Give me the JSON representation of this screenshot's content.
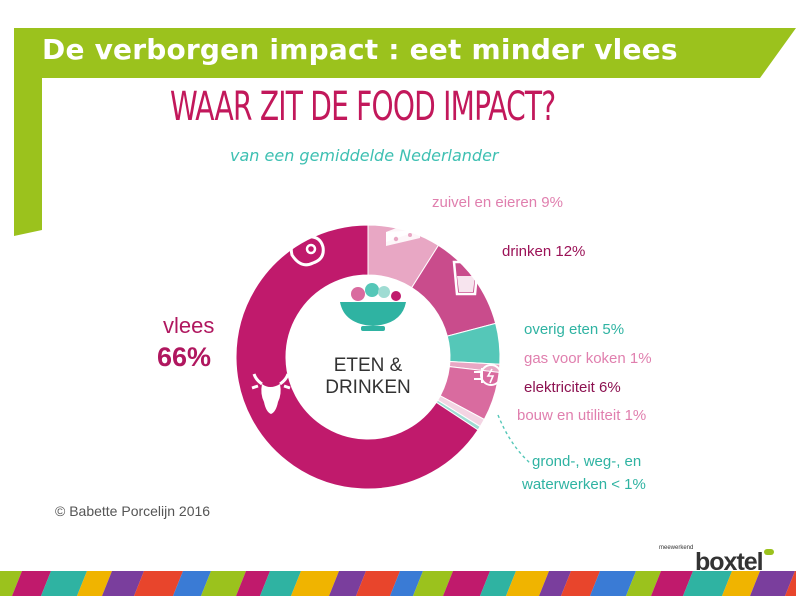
{
  "slide_title": "De verborgen impact : eet minder vlees",
  "brand": {
    "small": "meewerkend",
    "name": "boxtel"
  },
  "chart_data": {
    "type": "pie",
    "title": "WAAR ZIT DE FOOD IMPACT?",
    "subtitle": "van een gemiddelde Nederlander",
    "center_label": [
      "ETEN &",
      "DRINKEN"
    ],
    "credit": "© Babette Porcelijn 2016",
    "slices": [
      {
        "label": "zuivel en eieren",
        "display": "9%",
        "value": 9,
        "color": "#e8a7c4",
        "label_color": "#e07fae"
      },
      {
        "label": "drinken",
        "display": "12%",
        "value": 12,
        "color": "#c94c8c",
        "label_color": "#9b1257"
      },
      {
        "label": "overig eten",
        "display": "5%",
        "value": 5,
        "color": "#55c7b8",
        "label_color": "#2fb3a2"
      },
      {
        "label": "gas voor koken",
        "display": "1%",
        "value": 1,
        "color": "#e8a7c4",
        "label_color": "#e07fae"
      },
      {
        "label": "elektriciteit",
        "display": "6%",
        "value": 6,
        "color": "#d96b9f",
        "label_color": "#8c1150"
      },
      {
        "label": "bouw en utiliteit",
        "display": "1%",
        "value": 1,
        "color": "#f3d4e3",
        "label_color": "#e07fae"
      },
      {
        "label": "grond-, weg-, en waterwerken",
        "display": "< 1%",
        "value": 0.5,
        "color": "#9fdcd3",
        "label_color": "#2fb3a2"
      },
      {
        "label": "vlees",
        "display": "66%",
        "value": 66,
        "color": "#c01a6c",
        "label_color": "#b0175f"
      }
    ],
    "label_texts": {
      "zuivel": "zuivel en eieren 9%",
      "drinken": "drinken 12%",
      "overig": "overig eten 5%",
      "gas": "gas voor koken 1%",
      "elek": "elektriciteit 6%",
      "bouw": "bouw en utiliteit 1%",
      "grond1": "grond-, weg-, en",
      "grond2": "waterwerken < 1%",
      "vlees_name": "vlees",
      "vlees_value": "66%"
    },
    "icons": [
      "meat-icon",
      "cheese-icon",
      "glass-icon",
      "plug-icon",
      "cow-icon",
      "salad-bowl-icon"
    ]
  }
}
